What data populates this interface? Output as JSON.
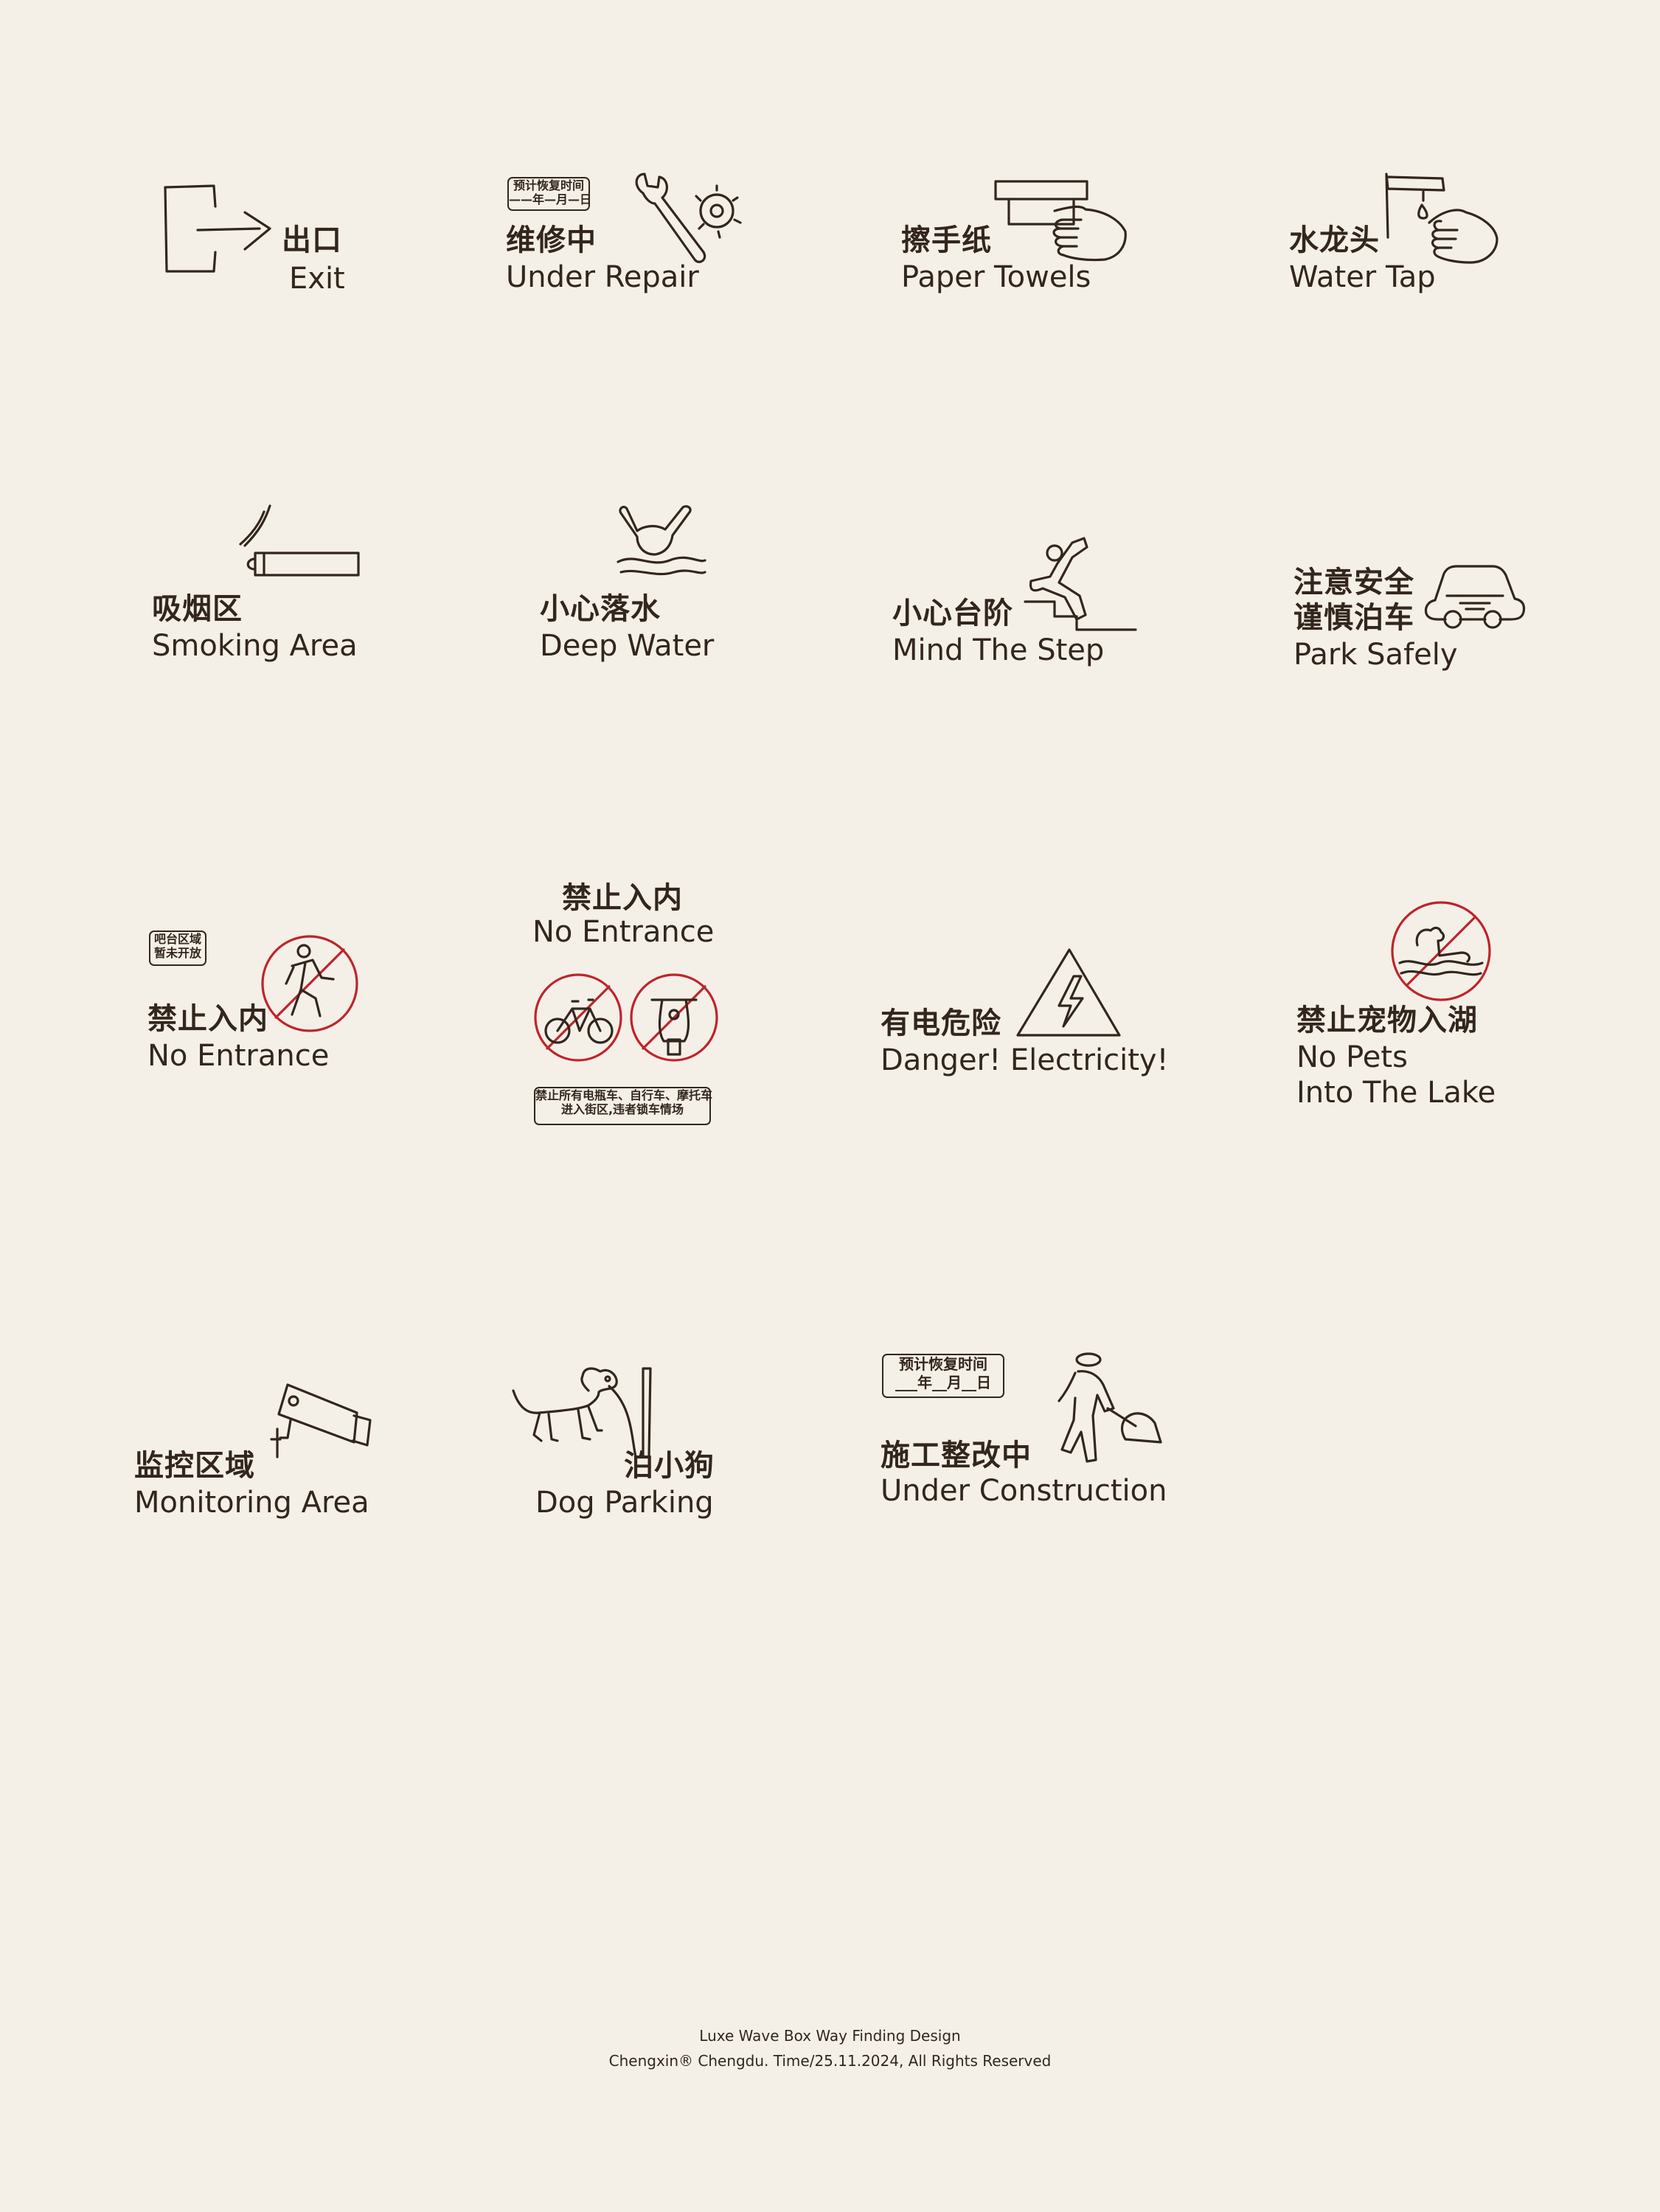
{
  "signs": {
    "exit": {
      "zh": "出口",
      "en": "Exit"
    },
    "under_repair": {
      "zh": "维修中",
      "en": "Under Repair",
      "box_l1": "预计恢复时间",
      "box_l2": "——年—月—日"
    },
    "paper_towels": {
      "zh": "擦手纸",
      "en": "Paper Towels"
    },
    "water_tap": {
      "zh": "水龙头",
      "en": "Water Tap"
    },
    "smoking_area": {
      "zh": "吸烟区",
      "en": "Smoking Area"
    },
    "deep_water": {
      "zh": "小心落水",
      "en": "Deep Water"
    },
    "mind_step": {
      "zh": "小心台阶",
      "en": "Mind The Step"
    },
    "park_safely": {
      "zh1": "注意安全",
      "zh2": "谨慎泊车",
      "en": "Park Safely"
    },
    "no_entrance_1": {
      "zh": "禁止入内",
      "en": "No Entrance",
      "box_l1": "吧台区域",
      "box_l2": "暂未开放"
    },
    "no_entrance_2": {
      "zh": "禁止入内",
      "en": "No Entrance",
      "box_l1": "禁止所有电瓶车、自行车、摩托车",
      "box_l2": "进入街区,违者锁车情场"
    },
    "electricity": {
      "zh": "有电危险",
      "en": "Danger! Electricity!"
    },
    "no_pets": {
      "zh": "禁止宠物入湖",
      "en1": "No Pets",
      "en2": "Into The Lake"
    },
    "monitoring": {
      "zh": "监控区域",
      "en": "Monitoring Area"
    },
    "dog_parking": {
      "zh": "泊小狗",
      "en": "Dog Parking"
    },
    "construction": {
      "zh": "施工整改中",
      "en": "Under Construction",
      "box_l1": "预计恢复时间",
      "box_l2": "___年__月__日"
    }
  },
  "footer": {
    "line1": "Luxe Wave Box Way Finding Design",
    "line2": "Chengxin® Chengdu. Time/25.11.2024, All Rights Reserved"
  },
  "colors": {
    "background": "#f4f0e8",
    "ink": "#33261c",
    "prohibition_red": "#c0232b"
  }
}
